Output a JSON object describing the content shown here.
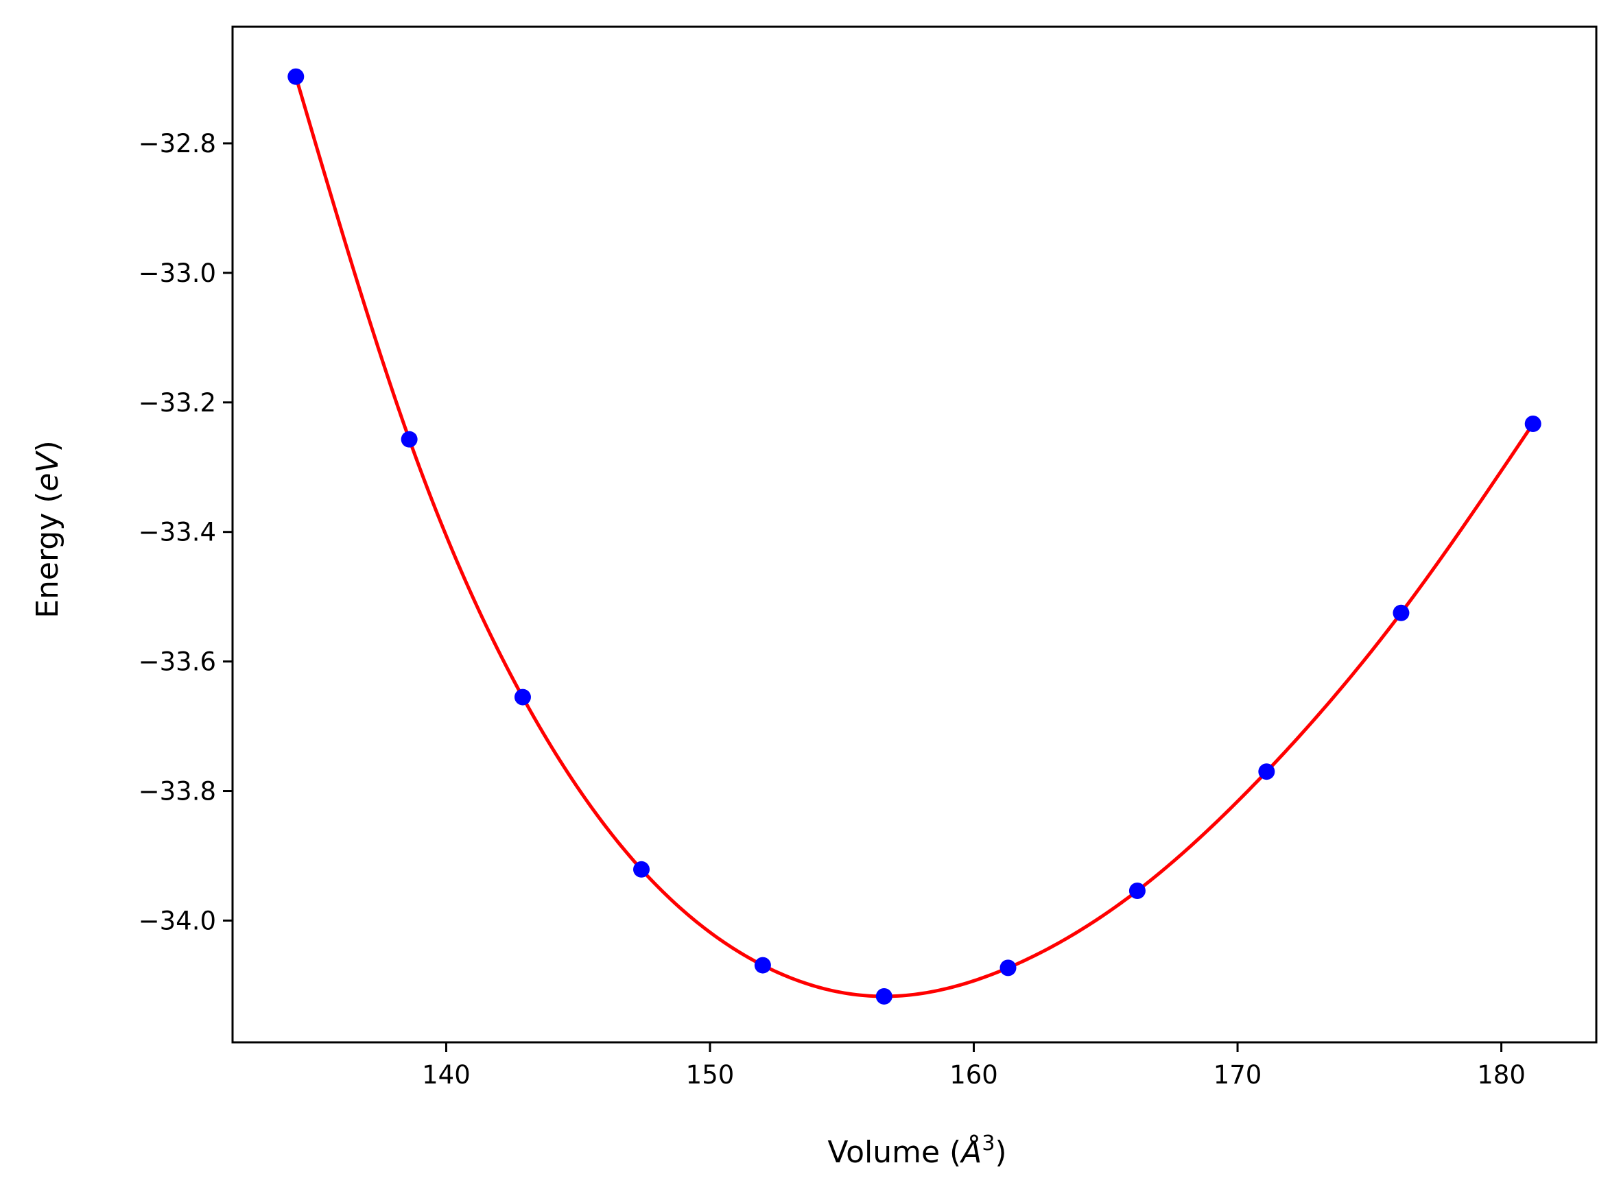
{
  "chart_data": {
    "type": "line",
    "xlabel": "Volume",
    "xlabel_unit": "Å",
    "xlabel_exp": "3",
    "ylabel": "Energy",
    "ylabel_unit": "eV",
    "xlim": [
      131.9,
      183.6
    ],
    "ylim": [
      -34.188,
      -32.62
    ],
    "x_ticks": [
      140,
      150,
      160,
      170,
      180
    ],
    "y_ticks": [
      -32.8,
      -33.0,
      -33.2,
      -33.4,
      -33.6,
      -33.8,
      -34.0
    ],
    "x_tick_labels": [
      "140",
      "150",
      "160",
      "170",
      "180"
    ],
    "y_tick_labels": [
      "−32.8",
      "−33.0",
      "−33.2",
      "−33.4",
      "−33.6",
      "−33.8",
      "−34.0"
    ],
    "grid": false,
    "legend": "none",
    "series": [
      {
        "kind": "scatter",
        "color": "#0000ff",
        "x": [
          134.3,
          138.6,
          142.9,
          147.4,
          152.0,
          156.6,
          161.3,
          166.2,
          171.1,
          176.2,
          181.2
        ],
        "y": [
          -32.697,
          -33.257,
          -33.655,
          -33.921,
          -34.069,
          -34.117,
          -34.073,
          -33.954,
          -33.77,
          -33.525,
          -33.233
        ]
      },
      {
        "kind": "line",
        "color": "#ff0000",
        "x": [
          134.3,
          138.6,
          142.9,
          147.4,
          152.0,
          156.6,
          161.3,
          166.2,
          171.1,
          176.2,
          181.2
        ],
        "y": [
          -32.697,
          -33.257,
          -33.655,
          -33.921,
          -34.069,
          -34.117,
          -34.073,
          -33.954,
          -33.77,
          -33.525,
          -33.233
        ]
      }
    ]
  }
}
